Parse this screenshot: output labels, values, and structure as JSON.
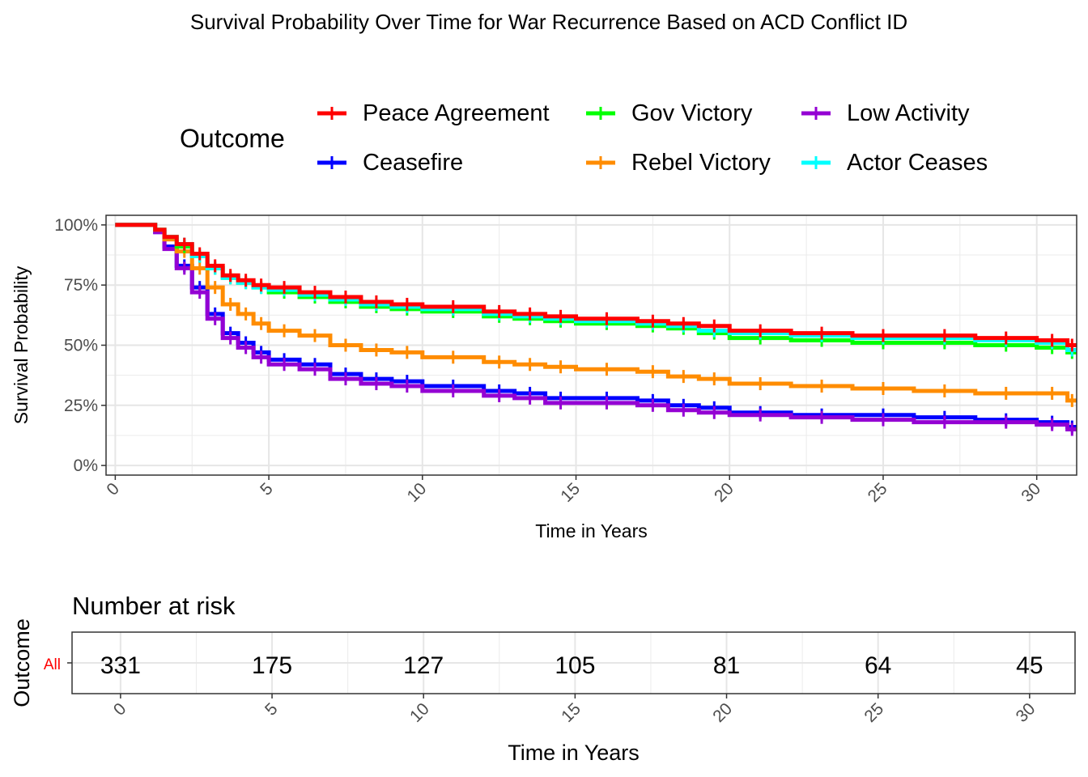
{
  "title": "Survival Probability Over Time for War Recurrence Based on ACD Conflict ID",
  "legend": {
    "title": "Outcome",
    "items": [
      {
        "label": "Peace Agreement",
        "color": "#ff0000"
      },
      {
        "label": "Gov Victory",
        "color": "#00ff00"
      },
      {
        "label": "Low Activity",
        "color": "#9400d3"
      },
      {
        "label": "Ceasefire",
        "color": "#0000ff"
      },
      {
        "label": "Rebel Victory",
        "color": "#ff8c00"
      },
      {
        "label": "Actor Ceases",
        "color": "#00ffff"
      }
    ]
  },
  "chart_data": {
    "type": "line",
    "title": "Survival Probability Over Time for War Recurrence Based on ACD Conflict ID",
    "xlabel": "Time in Years",
    "ylabel": "Survival Probability",
    "xlim": [
      -0.3,
      31.3
    ],
    "ylim": [
      -0.04,
      1.04
    ],
    "xticks": [
      0,
      5,
      10,
      15,
      20,
      25,
      30
    ],
    "xtick_labels": [
      "0",
      "5",
      "10",
      "15",
      "20",
      "25",
      "30"
    ],
    "yticks": [
      0,
      0.25,
      0.5,
      0.75,
      1.0
    ],
    "ytick_labels": [
      "0%",
      "25%",
      "50%",
      "75%",
      "100%"
    ],
    "grid": true,
    "legend_position": "top",
    "series": [
      {
        "name": "Peace Agreement",
        "color": "#ff0000",
        "x": [
          0,
          1,
          1.3,
          1.6,
          2,
          2.5,
          3,
          3.5,
          4,
          4.5,
          5,
          6,
          7,
          8,
          9,
          10,
          12,
          13,
          14,
          15,
          17,
          18,
          19,
          20,
          22,
          24,
          26,
          28,
          30,
          31,
          31.3
        ],
        "y": [
          1.0,
          1.0,
          0.98,
          0.95,
          0.92,
          0.88,
          0.83,
          0.79,
          0.77,
          0.75,
          0.74,
          0.72,
          0.7,
          0.68,
          0.67,
          0.66,
          0.64,
          0.63,
          0.62,
          0.61,
          0.6,
          0.59,
          0.58,
          0.56,
          0.55,
          0.54,
          0.54,
          0.53,
          0.52,
          0.5,
          0.5
        ]
      },
      {
        "name": "Gov Victory",
        "color": "#00ff00",
        "x": [
          0,
          1,
          1.3,
          1.6,
          2,
          2.5,
          3,
          3.5,
          4,
          4.5,
          5,
          6,
          7,
          8,
          9,
          10,
          12,
          13,
          14,
          15,
          17,
          18,
          19,
          20,
          22,
          24,
          26,
          28,
          30,
          31,
          31.3
        ],
        "y": [
          1.0,
          1.0,
          0.98,
          0.95,
          0.91,
          0.87,
          0.82,
          0.78,
          0.76,
          0.74,
          0.72,
          0.7,
          0.68,
          0.66,
          0.65,
          0.64,
          0.62,
          0.61,
          0.6,
          0.59,
          0.58,
          0.57,
          0.55,
          0.53,
          0.52,
          0.51,
          0.51,
          0.5,
          0.49,
          0.47,
          0.47
        ]
      },
      {
        "name": "Low Activity",
        "color": "#9400d3",
        "x": [
          0,
          1,
          1.3,
          1.6,
          2,
          2.5,
          3,
          3.5,
          4,
          4.5,
          5,
          6,
          7,
          8,
          9,
          10,
          12,
          13,
          14,
          15,
          17,
          18,
          19,
          20,
          22,
          24,
          26,
          28,
          30,
          31,
          31.3
        ],
        "y": [
          1.0,
          1.0,
          0.97,
          0.9,
          0.82,
          0.72,
          0.61,
          0.53,
          0.49,
          0.45,
          0.42,
          0.4,
          0.36,
          0.34,
          0.33,
          0.31,
          0.29,
          0.28,
          0.26,
          0.26,
          0.25,
          0.23,
          0.22,
          0.21,
          0.2,
          0.19,
          0.18,
          0.18,
          0.17,
          0.15,
          0.15
        ]
      },
      {
        "name": "Ceasefire",
        "color": "#0000ff",
        "x": [
          0,
          1,
          1.3,
          1.6,
          2,
          2.5,
          3,
          3.5,
          4,
          4.5,
          5,
          6,
          7,
          8,
          9,
          10,
          12,
          13,
          14,
          15,
          17,
          18,
          19,
          20,
          22,
          24,
          26,
          28,
          30,
          31,
          31.3
        ],
        "y": [
          1.0,
          1.0,
          0.97,
          0.91,
          0.83,
          0.74,
          0.63,
          0.55,
          0.51,
          0.47,
          0.44,
          0.42,
          0.38,
          0.36,
          0.35,
          0.33,
          0.31,
          0.3,
          0.28,
          0.28,
          0.27,
          0.25,
          0.24,
          0.22,
          0.21,
          0.21,
          0.2,
          0.19,
          0.18,
          0.16,
          0.16
        ]
      },
      {
        "name": "Rebel Victory",
        "color": "#ff8c00",
        "x": [
          0,
          1,
          1.3,
          1.6,
          2,
          2.5,
          3,
          3.5,
          4,
          4.5,
          5,
          6,
          7,
          8,
          9,
          10,
          12,
          13,
          14,
          15,
          17,
          18,
          19,
          20,
          22,
          24,
          26,
          28,
          30,
          31,
          31.3
        ],
        "y": [
          1.0,
          1.0,
          0.98,
          0.94,
          0.89,
          0.82,
          0.74,
          0.67,
          0.63,
          0.59,
          0.56,
          0.54,
          0.5,
          0.48,
          0.47,
          0.45,
          0.43,
          0.42,
          0.41,
          0.4,
          0.39,
          0.37,
          0.36,
          0.34,
          0.33,
          0.32,
          0.31,
          0.3,
          0.3,
          0.27,
          0.27
        ]
      },
      {
        "name": "Actor Ceases",
        "color": "#00ffff",
        "x": [
          0,
          1,
          1.3,
          1.6,
          2,
          2.5,
          3,
          3.5,
          4,
          4.5,
          5,
          6,
          7,
          8,
          9,
          10,
          12,
          13,
          14,
          15,
          17,
          18,
          19,
          20,
          22,
          24,
          26,
          28,
          30,
          31,
          31.3
        ],
        "y": [
          1.0,
          1.0,
          0.98,
          0.95,
          0.92,
          0.87,
          0.82,
          0.78,
          0.76,
          0.74,
          0.73,
          0.71,
          0.69,
          0.67,
          0.66,
          0.65,
          0.63,
          0.62,
          0.61,
          0.6,
          0.59,
          0.58,
          0.56,
          0.55,
          0.54,
          0.53,
          0.53,
          0.52,
          0.51,
          0.48,
          0.48
        ]
      }
    ]
  },
  "risk_table": {
    "title": "Number at risk",
    "ylabel": "Outcome",
    "xlabel": "Time in Years",
    "row_label": "All",
    "row_label_color": "#ff0000",
    "times": [
      0,
      5,
      10,
      15,
      20,
      25,
      30
    ],
    "counts": [
      "331",
      "175",
      "127",
      "105",
      "81",
      "64",
      "45"
    ],
    "xtick_labels": [
      "0",
      "5",
      "10",
      "15",
      "20",
      "25",
      "30"
    ]
  }
}
